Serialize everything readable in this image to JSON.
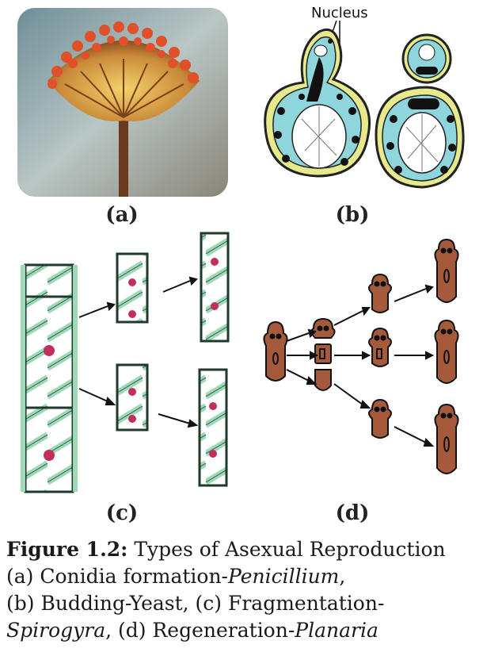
{
  "panels": {
    "a": {
      "label": "(a)"
    },
    "b": {
      "label": "(b)",
      "annotation": "Nucleus"
    },
    "c": {
      "label": "(c)"
    },
    "d": {
      "label": "(d)"
    }
  },
  "caption": {
    "figure_label": "Figure 1.2:",
    "title": "Types of Asexual Reproduction",
    "line2_prefix": "(a) Conidia formation-",
    "line2_italic": "Penicillium",
    "line2_suffix": ",",
    "line3": "(b) Budding-Yeast, (c) Fragmentation-",
    "line4_italic1": "Spirogyra",
    "line4_mid": ", (d) Regeneration-",
    "line4_italic2": "Planaria"
  },
  "colors": {
    "cytoplasm": "#8fd6dc",
    "cell_wall": "#e6ea8c",
    "spirogyra_green": "#9fd9b8",
    "planaria_brown": "#a65a3c",
    "penicillium_orange": "#e0502a"
  }
}
